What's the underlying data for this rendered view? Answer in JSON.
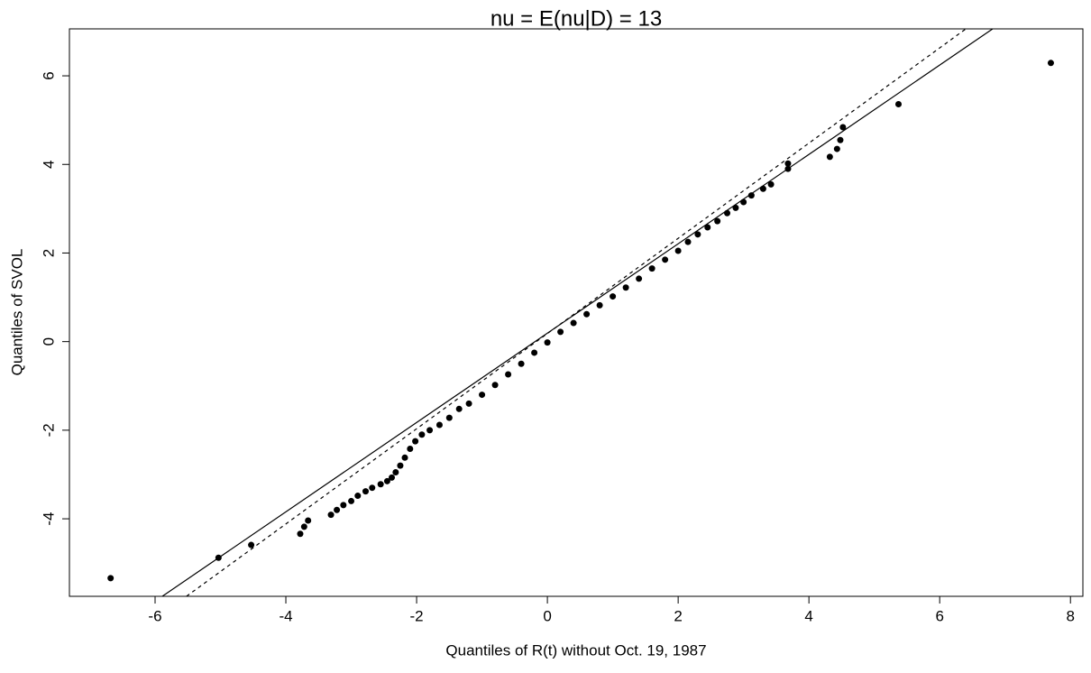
{
  "chart_data": {
    "type": "scatter",
    "title": "nu = E(nu|D) = 13",
    "x_label": "Quantiles of R(t) without Oct. 19, 1987",
    "y_label": "Quantiles of SVOL",
    "xlim": [
      -7.31,
      8.19
    ],
    "ylim": [
      -5.75,
      7.06
    ],
    "xticks": [
      -6,
      -4,
      -2,
      0,
      2,
      4,
      6,
      8
    ],
    "yticks": [
      -4,
      -2,
      0,
      2,
      4,
      6
    ],
    "color": "#000000",
    "x": [
      -6.68,
      -5.03,
      -4.53,
      -3.78,
      -3.72,
      -3.66,
      -3.31,
      -3.22,
      -3.12,
      -3.0,
      -2.9,
      -2.78,
      -2.68,
      -2.55,
      -2.45,
      -2.38,
      -2.32,
      -2.25,
      -2.18,
      -2.1,
      -2.02,
      -1.92,
      -1.8,
      -1.65,
      -1.5,
      -1.35,
      -1.2,
      -1.0,
      -0.8,
      -0.6,
      -0.4,
      -0.2,
      0.0,
      0.2,
      0.4,
      0.6,
      0.8,
      1.0,
      1.2,
      1.4,
      1.6,
      1.8,
      2.0,
      2.15,
      2.3,
      2.45,
      2.6,
      2.75,
      2.88,
      3.0,
      3.12,
      3.3,
      3.42,
      3.68,
      3.68,
      4.32,
      4.43,
      4.48,
      4.52,
      5.37,
      7.7
    ],
    "values": [
      -5.34,
      -4.88,
      -4.59,
      -4.34,
      -4.18,
      -4.04,
      -3.91,
      -3.8,
      -3.69,
      -3.6,
      -3.48,
      -3.38,
      -3.3,
      -3.22,
      -3.15,
      -3.07,
      -2.95,
      -2.8,
      -2.62,
      -2.42,
      -2.25,
      -2.1,
      -2.0,
      -1.88,
      -1.72,
      -1.52,
      -1.4,
      -1.2,
      -0.98,
      -0.74,
      -0.5,
      -0.25,
      -0.02,
      0.22,
      0.42,
      0.62,
      0.82,
      1.02,
      1.22,
      1.42,
      1.65,
      1.85,
      2.05,
      2.25,
      2.42,
      2.58,
      2.72,
      2.9,
      3.02,
      3.15,
      3.3,
      3.45,
      3.55,
      3.9,
      4.02,
      4.17,
      4.35,
      4.55,
      4.84,
      5.36,
      6.29
    ],
    "reference_lines": [
      {
        "style": "solid",
        "x": [
          -5.89,
          6.81
        ],
        "y": [
          -5.75,
          7.06
        ]
      },
      {
        "style": "dashed",
        "x": [
          -5.52,
          6.4
        ],
        "y": [
          -5.75,
          7.06
        ]
      }
    ]
  }
}
